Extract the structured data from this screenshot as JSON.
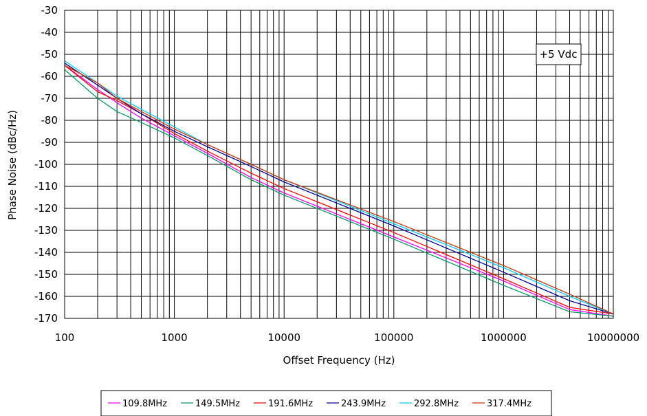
{
  "chart_data": {
    "type": "line",
    "title": "",
    "xlabel": "Offset Frequency (Hz)",
    "ylabel": "Phase Noise (dBc/Hz)",
    "x_scale": "log",
    "xlim": [
      100,
      10000000
    ],
    "ylim": [
      -170,
      -30
    ],
    "x_ticks": [
      100,
      1000,
      10000,
      100000,
      1000000,
      10000000
    ],
    "x_tick_labels": [
      "100",
      "1000",
      "10000",
      "100000",
      "1000000",
      "10000000"
    ],
    "y_ticks": [
      -30,
      -40,
      -50,
      -60,
      -70,
      -80,
      -90,
      -100,
      -110,
      -120,
      -130,
      -140,
      -150,
      -160,
      -170
    ],
    "y_tick_labels": [
      "-30",
      "-40",
      "-50",
      "-60",
      "-70",
      "-80",
      "-90",
      "-100",
      "-110",
      "-120",
      "-130",
      "-140",
      "-150",
      "-160",
      "-170"
    ],
    "grid": true,
    "legend_position": "bottom",
    "annotation": "+5 Vdc",
    "series": [
      {
        "name": "109.8MHz",
        "color": "#ff00ff",
        "x": [
          100,
          200,
          300,
          500,
          1000,
          2000,
          5000,
          10000,
          100000,
          1000000,
          4000000,
          10000000
        ],
        "y": [
          -55,
          -66,
          -72,
          -79,
          -87,
          -95,
          -106,
          -113,
          -133,
          -153,
          -166,
          -169
        ]
      },
      {
        "name": "149.5MHz",
        "color": "#009966",
        "x": [
          100,
          200,
          300,
          500,
          1000,
          2000,
          5000,
          10000,
          100000,
          1000000,
          4000000,
          10000000
        ],
        "y": [
          -57,
          -70,
          -76,
          -81,
          -88,
          -96,
          -107,
          -114,
          -134,
          -155,
          -167,
          -169
        ]
      },
      {
        "name": "191.6MHz",
        "color": "#ff0000",
        "x": [
          100,
          200,
          300,
          500,
          1000,
          2000,
          5000,
          10000,
          100000,
          1000000,
          4000000,
          10000000
        ],
        "y": [
          -55,
          -67,
          -71,
          -77,
          -86,
          -94,
          -104,
          -111,
          -131,
          -152,
          -165,
          -168
        ]
      },
      {
        "name": "243.9MHz",
        "color": "#000099",
        "x": [
          100,
          200,
          300,
          500,
          1000,
          2000,
          5000,
          10000,
          100000,
          1000000,
          4000000,
          10000000
        ],
        "y": [
          -54,
          -64,
          -70,
          -77,
          -85,
          -92,
          -101,
          -108,
          -128,
          -149,
          -162,
          -168
        ]
      },
      {
        "name": "292.8MHz",
        "color": "#00ccff",
        "x": [
          100,
          200,
          300,
          500,
          1000,
          2000,
          5000,
          10000,
          100000,
          1000000,
          4000000,
          10000000
        ],
        "y": [
          -53,
          -63,
          -69,
          -75,
          -83,
          -91,
          -100,
          -107,
          -127,
          -147,
          -160,
          -168
        ]
      },
      {
        "name": "317.4MHz",
        "color": "#cc3300",
        "x": [
          100,
          200,
          300,
          500,
          1000,
          2000,
          5000,
          10000,
          100000,
          1000000,
          4000000,
          10000000
        ],
        "y": [
          -55,
          -63,
          -70,
          -76,
          -84,
          -91,
          -100,
          -107,
          -126,
          -146,
          -159,
          -168
        ]
      }
    ]
  }
}
